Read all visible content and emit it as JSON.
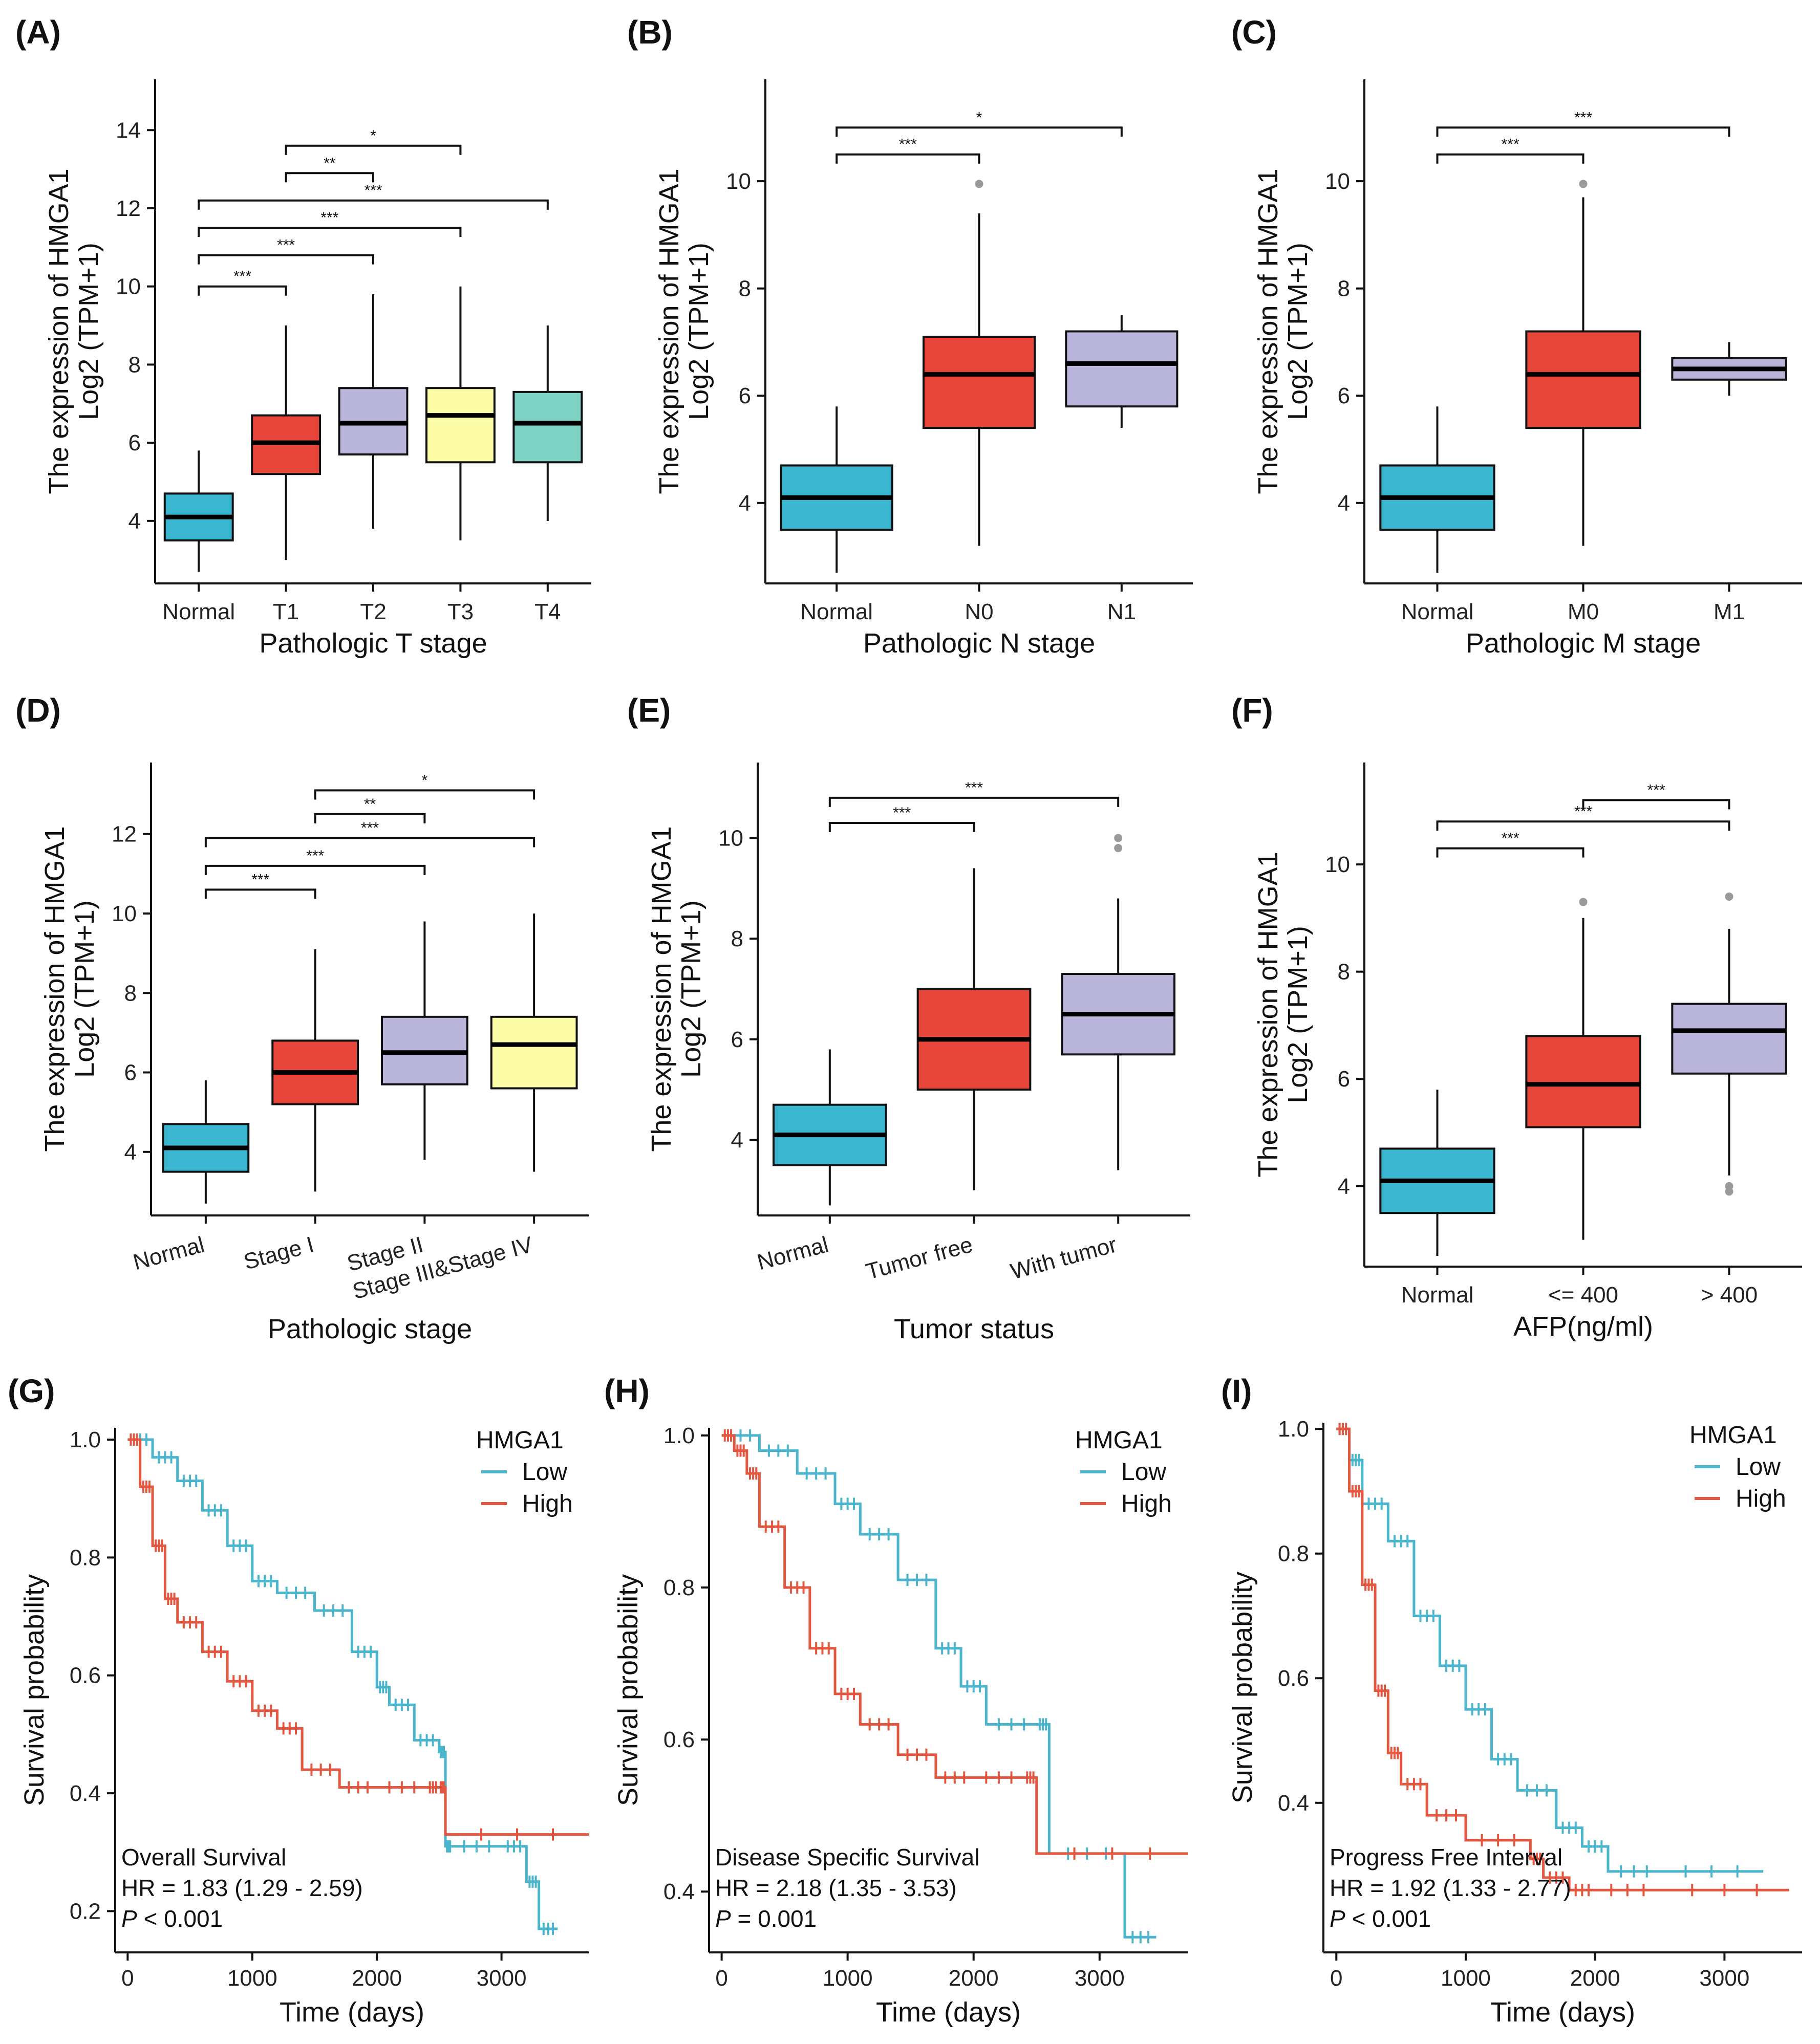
{
  "figure": {
    "colors": {
      "Normal": "#3bb6d1",
      "red": "#e8453a",
      "lavender": "#b9b5db",
      "yellow": "#fdfda7",
      "teal": "#7ed3c4",
      "km_low": "#4ab5cc",
      "km_high": "#e3563f",
      "axis": "#111111",
      "outlier": "#9a9a9a"
    }
  },
  "chart_data": [
    {
      "type": "boxplot",
      "panel": "(A)",
      "xlabel": "Pathologic T stage",
      "ylabel_line1": "The expression of HMGA1",
      "ylabel_line2": "Log2 (TPM+1)",
      "ylim": [
        2.4,
        15.3
      ],
      "yticks": [
        4,
        6,
        8,
        10,
        12,
        14
      ],
      "categories": [
        "Normal",
        "T1",
        "T2",
        "T3",
        "T4"
      ],
      "tick_rotate": false,
      "boxes": [
        {
          "q1": 3.5,
          "median": 4.1,
          "q3": 4.7,
          "wlo": 2.7,
          "whi": 5.8,
          "out": [],
          "color": "Normal"
        },
        {
          "q1": 5.2,
          "median": 6.0,
          "q3": 6.7,
          "wlo": 3.0,
          "whi": 9.0,
          "out": [],
          "color": "red"
        },
        {
          "q1": 5.7,
          "median": 6.5,
          "q3": 7.4,
          "wlo": 3.8,
          "whi": 9.8,
          "out": [],
          "color": "lavender"
        },
        {
          "q1": 5.5,
          "median": 6.7,
          "q3": 7.4,
          "wlo": 3.5,
          "whi": 10.0,
          "out": [],
          "color": "yellow"
        },
        {
          "q1": 5.5,
          "median": 6.5,
          "q3": 7.3,
          "wlo": 4.0,
          "whi": 9.0,
          "out": [],
          "color": "teal"
        }
      ],
      "brackets": [
        {
          "from": 1,
          "to": 3,
          "y": 13.6,
          "label": "*"
        },
        {
          "from": 1,
          "to": 2,
          "y": 12.9,
          "label": "**"
        },
        {
          "from": 0,
          "to": 4,
          "y": 12.2,
          "label": "***"
        },
        {
          "from": 0,
          "to": 3,
          "y": 11.5,
          "label": "***"
        },
        {
          "from": 0,
          "to": 2,
          "y": 10.8,
          "label": "***"
        },
        {
          "from": 0,
          "to": 1,
          "y": 10.0,
          "label": "***"
        }
      ]
    },
    {
      "type": "boxplot",
      "panel": "(B)",
      "xlabel": "Pathologic N stage",
      "ylabel_line1": "The expression of HMGA1",
      "ylabel_line2": "Log2 (TPM+1)",
      "ylim": [
        2.5,
        11.9
      ],
      "yticks": [
        4,
        6,
        8,
        10
      ],
      "categories": [
        "Normal",
        "N0",
        "N1"
      ],
      "tick_rotate": false,
      "boxes": [
        {
          "q1": 3.5,
          "median": 4.1,
          "q3": 4.7,
          "wlo": 2.7,
          "whi": 5.8,
          "out": [],
          "color": "Normal"
        },
        {
          "q1": 5.4,
          "median": 6.4,
          "q3": 7.1,
          "wlo": 3.2,
          "whi": 9.4,
          "out": [
            9.95
          ],
          "color": "red"
        },
        {
          "q1": 5.8,
          "median": 6.6,
          "q3": 7.2,
          "wlo": 5.4,
          "whi": 7.5,
          "out": [],
          "color": "lavender"
        }
      ],
      "brackets": [
        {
          "from": 0,
          "to": 2,
          "y": 11.0,
          "label": "*"
        },
        {
          "from": 0,
          "to": 1,
          "y": 10.5,
          "label": "***"
        }
      ]
    },
    {
      "type": "boxplot",
      "panel": "(C)",
      "xlabel": "Pathologic M stage",
      "ylabel_line1": "The expression of HMGA1",
      "ylabel_line2": "Log2 (TPM+1)",
      "ylim": [
        2.5,
        11.9
      ],
      "yticks": [
        4,
        6,
        8,
        10
      ],
      "categories": [
        "Normal",
        "M0",
        "M1"
      ],
      "tick_rotate": false,
      "boxes": [
        {
          "q1": 3.5,
          "median": 4.1,
          "q3": 4.7,
          "wlo": 2.7,
          "whi": 5.8,
          "out": [],
          "color": "Normal"
        },
        {
          "q1": 5.4,
          "median": 6.4,
          "q3": 7.2,
          "wlo": 3.2,
          "whi": 9.7,
          "out": [
            9.95
          ],
          "color": "red"
        },
        {
          "q1": 6.3,
          "median": 6.5,
          "q3": 6.7,
          "wlo": 6.0,
          "whi": 7.0,
          "out": [],
          "color": "lavender"
        }
      ],
      "brackets": [
        {
          "from": 0,
          "to": 2,
          "y": 11.0,
          "label": "***"
        },
        {
          "from": 0,
          "to": 1,
          "y": 10.5,
          "label": "***"
        }
      ]
    },
    {
      "type": "boxplot",
      "panel": "(D)",
      "xlabel": "Pathologic stage",
      "ylabel_line1": "The expression of HMGA1",
      "ylabel_line2": "Log2 (TPM+1)",
      "ylim": [
        2.4,
        13.8
      ],
      "yticks": [
        4,
        6,
        8,
        10,
        12
      ],
      "categories": [
        "Normal",
        "Stage I",
        "Stage II",
        "Stage III&Stage IV"
      ],
      "tick_rotate": true,
      "boxes": [
        {
          "q1": 3.5,
          "median": 4.1,
          "q3": 4.7,
          "wlo": 2.7,
          "whi": 5.8,
          "out": [],
          "color": "Normal"
        },
        {
          "q1": 5.2,
          "median": 6.0,
          "q3": 6.8,
          "wlo": 3.0,
          "whi": 9.1,
          "out": [],
          "color": "red"
        },
        {
          "q1": 5.7,
          "median": 6.5,
          "q3": 7.4,
          "wlo": 3.8,
          "whi": 9.8,
          "out": [],
          "color": "lavender"
        },
        {
          "q1": 5.6,
          "median": 6.7,
          "q3": 7.4,
          "wlo": 3.5,
          "whi": 10.0,
          "out": [],
          "color": "yellow"
        }
      ],
      "brackets": [
        {
          "from": 1,
          "to": 3,
          "y": 13.1,
          "label": "*"
        },
        {
          "from": 1,
          "to": 2,
          "y": 12.5,
          "label": "**"
        },
        {
          "from": 0,
          "to": 3,
          "y": 11.9,
          "label": "***"
        },
        {
          "from": 0,
          "to": 2,
          "y": 11.2,
          "label": "***"
        },
        {
          "from": 0,
          "to": 1,
          "y": 10.6,
          "label": "***"
        }
      ]
    },
    {
      "type": "boxplot",
      "panel": "(E)",
      "xlabel": "Tumor status",
      "ylabel_line1": "The expression of HMGA1",
      "ylabel_line2": "Log2 (TPM+1)",
      "ylim": [
        2.5,
        11.5
      ],
      "yticks": [
        4,
        6,
        8,
        10
      ],
      "categories": [
        "Normal",
        "Tumor free",
        "With tumor"
      ],
      "tick_rotate": true,
      "boxes": [
        {
          "q1": 3.5,
          "median": 4.1,
          "q3": 4.7,
          "wlo": 2.7,
          "whi": 5.8,
          "out": [],
          "color": "Normal"
        },
        {
          "q1": 5.0,
          "median": 6.0,
          "q3": 7.0,
          "wlo": 3.0,
          "whi": 9.4,
          "out": [],
          "color": "red"
        },
        {
          "q1": 5.7,
          "median": 6.5,
          "q3": 7.3,
          "wlo": 3.4,
          "whi": 8.8,
          "out": [
            9.8,
            10.0
          ],
          "color": "lavender"
        }
      ],
      "brackets": [
        {
          "from": 0,
          "to": 2,
          "y": 10.8,
          "label": "***"
        },
        {
          "from": 0,
          "to": 1,
          "y": 10.3,
          "label": "***"
        }
      ]
    },
    {
      "type": "boxplot",
      "panel": "(F)",
      "xlabel": "AFP(ng/ml)",
      "ylabel_line1": "The expression of HMGA1",
      "ylabel_line2": "Log2 (TPM+1)",
      "ylim": [
        2.5,
        11.9
      ],
      "yticks": [
        4,
        6,
        8,
        10
      ],
      "categories": [
        "Normal",
        "<= 400",
        "> 400"
      ],
      "tick_rotate": false,
      "boxes": [
        {
          "q1": 3.5,
          "median": 4.1,
          "q3": 4.7,
          "wlo": 2.7,
          "whi": 5.8,
          "out": [],
          "color": "Normal"
        },
        {
          "q1": 5.1,
          "median": 5.9,
          "q3": 6.8,
          "wlo": 3.0,
          "whi": 9.0,
          "out": [
            9.3
          ],
          "color": "red"
        },
        {
          "q1": 6.1,
          "median": 6.9,
          "q3": 7.4,
          "wlo": 4.2,
          "whi": 8.8,
          "out": [
            9.4,
            4.0,
            3.9
          ],
          "color": "lavender"
        }
      ],
      "brackets": [
        {
          "from": 1,
          "to": 2,
          "y": 11.2,
          "label": "***"
        },
        {
          "from": 0,
          "to": 2,
          "y": 10.8,
          "label": "***"
        },
        {
          "from": 0,
          "to": 1,
          "y": 10.3,
          "label": "***"
        }
      ]
    },
    {
      "type": "line",
      "subtype": "kaplan-meier",
      "panel": "(G)",
      "xlabel": "Time (days)",
      "ylabel": "Survival probability",
      "xlim": [
        -100,
        3700
      ],
      "ylim": [
        0.13,
        1.02
      ],
      "xticks": [
        0,
        1000,
        2000,
        3000
      ],
      "yticks": [
        0.2,
        0.4,
        0.6,
        0.8,
        1.0
      ],
      "legend_title": "HMGA1",
      "legend_position": "top-right",
      "annotation": [
        "Overall Survival",
        "HR = 1.83 (1.29 -  2.59)"
      ],
      "p_prefix": "P",
      "p_text": " < 0.001",
      "series": [
        {
          "name": "Low",
          "color": "km_low",
          "x": [
            0,
            200,
            400,
            600,
            800,
            1000,
            1200,
            1500,
            1800,
            2000,
            2100,
            2300,
            2500,
            2550,
            2600,
            3000,
            3200,
            3300,
            3450
          ],
          "y": [
            1.0,
            0.97,
            0.93,
            0.88,
            0.82,
            0.76,
            0.74,
            0.71,
            0.64,
            0.58,
            0.55,
            0.49,
            0.47,
            0.31,
            0.31,
            0.31,
            0.25,
            0.17,
            0.17
          ]
        },
        {
          "name": "High",
          "color": "km_high",
          "x": [
            0,
            100,
            200,
            300,
            400,
            600,
            800,
            1000,
            1200,
            1400,
            1700,
            2000,
            2400,
            2500,
            2550,
            3700
          ],
          "y": [
            1.0,
            0.92,
            0.82,
            0.73,
            0.69,
            0.64,
            0.59,
            0.54,
            0.51,
            0.44,
            0.41,
            0.41,
            0.41,
            0.41,
            0.33,
            0.33
          ]
        }
      ]
    },
    {
      "type": "line",
      "subtype": "kaplan-meier",
      "panel": "(H)",
      "xlabel": "Time (days)",
      "ylabel": "Survival probability",
      "xlim": [
        -100,
        3700
      ],
      "ylim": [
        0.32,
        1.01
      ],
      "xticks": [
        0,
        1000,
        2000,
        3000
      ],
      "yticks": [
        0.4,
        0.6,
        0.8,
        1.0
      ],
      "legend_title": "HMGA1",
      "legend_position": "top-right",
      "annotation": [
        "Disease Specific Survival",
        "HR = 2.18 (1.35 -  3.53)"
      ],
      "p_prefix": "P",
      "p_text": " = 0.001",
      "series": [
        {
          "name": "Low",
          "color": "km_low",
          "x": [
            0,
            300,
            600,
            900,
            1100,
            1400,
            1700,
            1900,
            2100,
            2500,
            2600,
            3200,
            3450
          ],
          "y": [
            1.0,
            0.98,
            0.95,
            0.91,
            0.87,
            0.81,
            0.72,
            0.67,
            0.62,
            0.62,
            0.45,
            0.34,
            0.34
          ]
        },
        {
          "name": "High",
          "color": "km_high",
          "x": [
            0,
            100,
            200,
            300,
            500,
            700,
            900,
            1100,
            1400,
            1700,
            2000,
            2400,
            2500,
            3700
          ],
          "y": [
            1.0,
            0.98,
            0.95,
            0.88,
            0.8,
            0.72,
            0.66,
            0.62,
            0.58,
            0.55,
            0.55,
            0.55,
            0.45,
            0.45
          ]
        }
      ]
    },
    {
      "type": "line",
      "subtype": "kaplan-meier",
      "panel": "(I)",
      "xlabel": "Time (days)",
      "ylabel": "Survival probability",
      "xlim": [
        -100,
        3600
      ],
      "ylim": [
        0.16,
        1.01
      ],
      "xticks": [
        0,
        1000,
        2000,
        3000
      ],
      "yticks": [
        0.4,
        0.6,
        0.8,
        1.0
      ],
      "legend_title": "HMGA1",
      "legend_position": "top-right",
      "annotation": [
        "Progress Free Interval",
        "HR = 1.92 (1.33 -  2.77)"
      ],
      "p_prefix": "P",
      "p_text": " < 0.001",
      "series": [
        {
          "name": "Low",
          "color": "km_low",
          "x": [
            0,
            100,
            200,
            400,
            600,
            800,
            1000,
            1200,
            1400,
            1700,
            1900,
            2100,
            2500,
            3300
          ],
          "y": [
            1.0,
            0.95,
            0.88,
            0.82,
            0.7,
            0.62,
            0.55,
            0.47,
            0.42,
            0.36,
            0.33,
            0.29,
            0.29,
            0.29
          ]
        },
        {
          "name": "High",
          "color": "km_high",
          "x": [
            0,
            100,
            200,
            300,
            400,
            500,
            700,
            1000,
            1500,
            1600,
            1800,
            2000,
            2500,
            3500
          ],
          "y": [
            1.0,
            0.9,
            0.75,
            0.58,
            0.48,
            0.43,
            0.38,
            0.34,
            0.31,
            0.28,
            0.26,
            0.26,
            0.26,
            0.26
          ]
        }
      ]
    }
  ]
}
